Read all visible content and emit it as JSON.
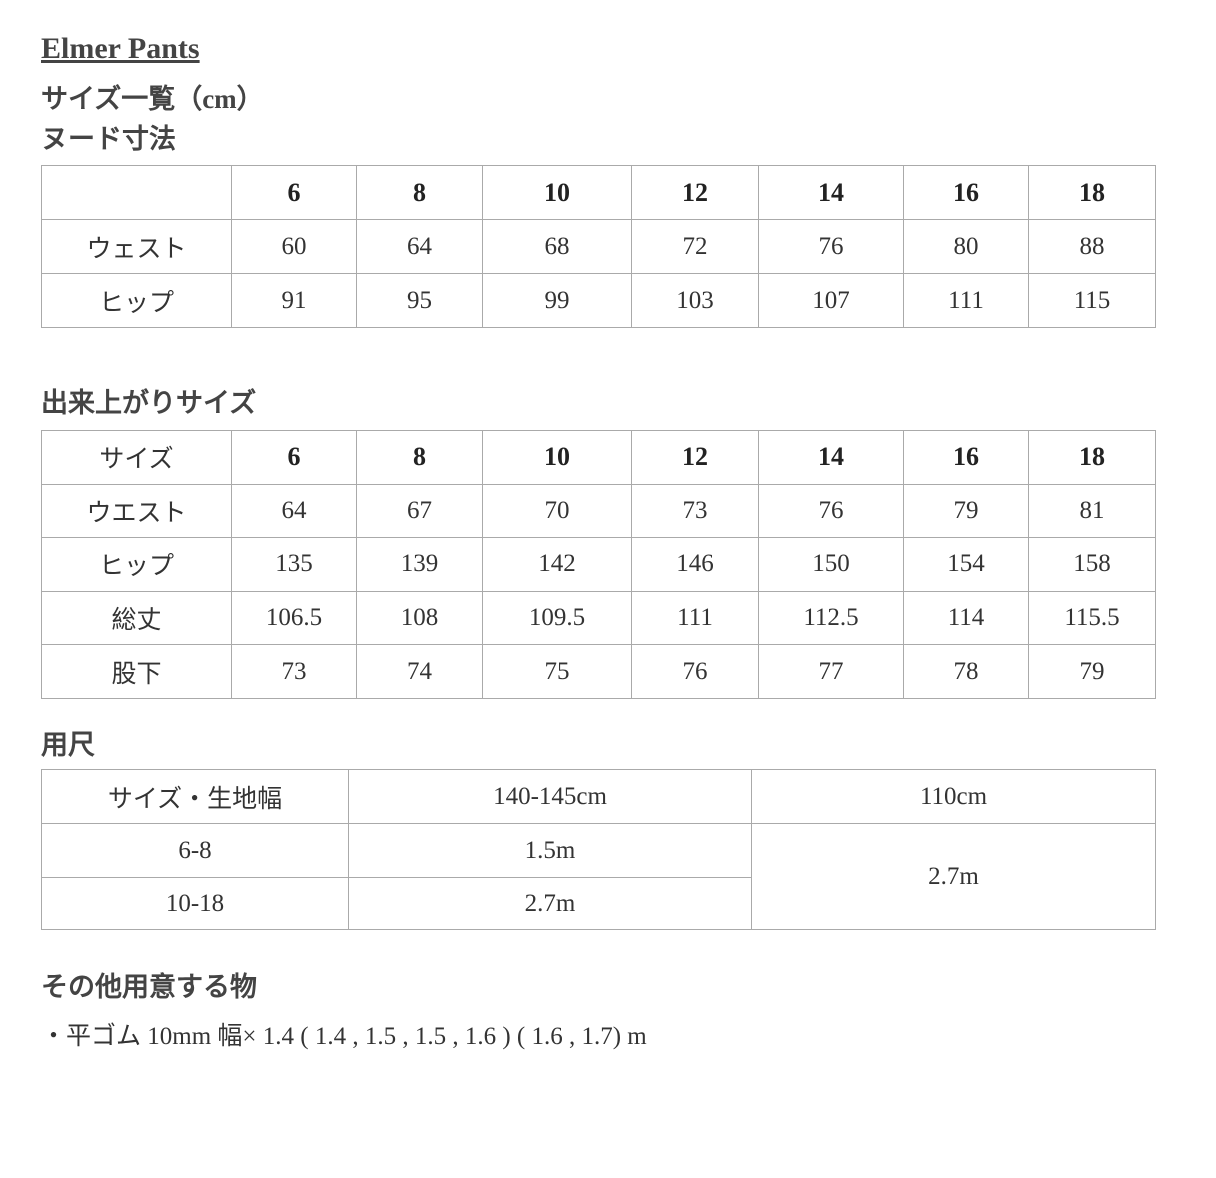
{
  "title": "Elmer Pants",
  "subtitle": "サイズ一覧（cm）",
  "nude": {
    "heading": "ヌード寸法",
    "header": [
      "",
      "6",
      "8",
      "10",
      "12",
      "14",
      "16",
      "18"
    ],
    "rows": [
      [
        "ウェスト",
        "60",
        "64",
        "68",
        "72",
        "76",
        "80",
        "88"
      ],
      [
        "ヒップ",
        "91",
        "95",
        "99",
        "103",
        "107",
        "111",
        "115"
      ]
    ]
  },
  "finished": {
    "heading": "出来上がりサイズ",
    "header": [
      "サイズ",
      "6",
      "8",
      "10",
      "12",
      "14",
      "16",
      "18"
    ],
    "rows": [
      [
        "ウエスト",
        "64",
        "67",
        "70",
        "73",
        "76",
        "79",
        "81"
      ],
      [
        "ヒップ",
        "135",
        "139",
        "142",
        "146",
        "150",
        "154",
        "158"
      ],
      [
        "総丈",
        "106.5",
        "108",
        "109.5",
        "111",
        "112.5",
        "114",
        "115.5"
      ],
      [
        "股下",
        "73",
        "74",
        "75",
        "76",
        "77",
        "78",
        "79"
      ]
    ]
  },
  "yardage": {
    "heading": "用尺",
    "header": [
      "サイズ・生地幅",
      "140-145cm",
      "110cm"
    ],
    "rows": [
      [
        "6-8",
        "1.5m"
      ],
      [
        "10-18",
        "2.7m"
      ]
    ],
    "merged_110": "2.7m"
  },
  "other": {
    "heading": "その他用意する物",
    "item": "・平ゴム 10mm 幅× 1.4 ( 1.4 , 1.5 , 1.5 , 1.6 ) ( 1.6 , 1.7) m"
  }
}
